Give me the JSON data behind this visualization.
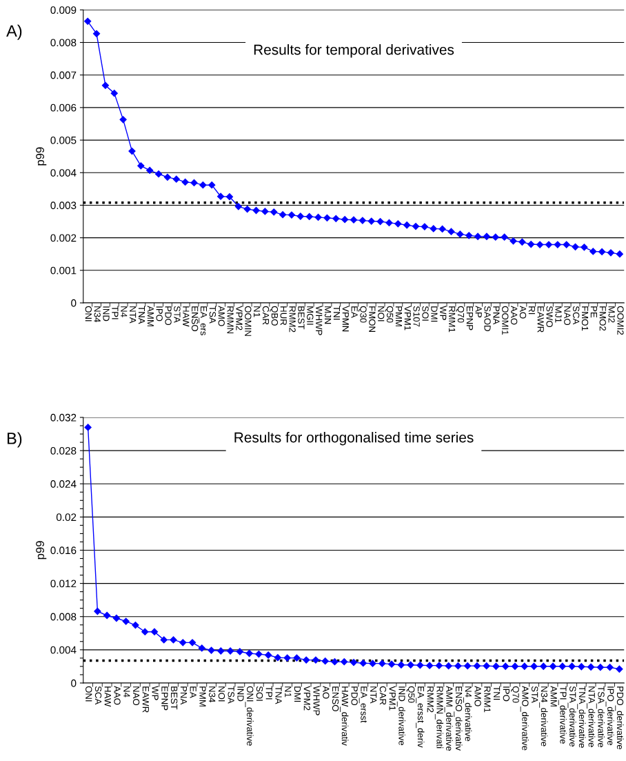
{
  "chart_data": [
    {
      "type": "line",
      "title": "Results for temporal derivatives",
      "ylabel": "p99",
      "annotations": [
        "A)"
      ],
      "categories": [
        "ONI",
        "N34",
        "IND",
        "TPI",
        "N4",
        "NTA",
        "TNA",
        "AMM",
        "IPO",
        "PDO",
        "STA",
        "HAW",
        "ENSO",
        "EA_ers",
        "TSA",
        "AMO",
        "RMMN",
        "VPM2",
        "OOMIN",
        "N1",
        "CAR",
        "QBO",
        "HUR",
        "RMM2",
        "BEST",
        "MGII",
        "WHWP",
        "MJN",
        "TNI",
        "VPMN",
        "EA",
        "Q30",
        "FMON",
        "NOI",
        "Q50",
        "PMM",
        "VPM1",
        "S107",
        "SOI",
        "DMI",
        "WP",
        "RMM1",
        "Q70",
        "EPNP",
        "AP",
        "SAOD",
        "PNA",
        "OOMI1",
        "AAO",
        "AO",
        "RI",
        "EAWR",
        "SWO",
        "MJ1",
        "NAO",
        "SCA",
        "FMO1",
        "PE",
        "FMO2",
        "MJ2",
        "OOMI2"
      ],
      "series": [
        {
          "color": "#0000ff",
          "values": [
            0.00865,
            0.00827,
            0.00668,
            0.00644,
            0.00563,
            0.00466,
            0.00421,
            0.00407,
            0.00396,
            0.00386,
            0.0038,
            0.00371,
            0.00369,
            0.00362,
            0.00362,
            0.00327,
            0.00326,
            0.00296,
            0.00288,
            0.00284,
            0.00281,
            0.00279,
            0.00271,
            0.0027,
            0.00266,
            0.00265,
            0.00263,
            0.00261,
            0.00259,
            0.00256,
            0.00255,
            0.00253,
            0.00251,
            0.0025,
            0.00246,
            0.00243,
            0.00239,
            0.00235,
            0.00234,
            0.00228,
            0.00227,
            0.00219,
            0.00211,
            0.00207,
            0.00204,
            0.00204,
            0.00202,
            0.00202,
            0.0019,
            0.00187,
            0.0018,
            0.00179,
            0.00179,
            0.00179,
            0.00179,
            0.00172,
            0.00171,
            0.00158,
            0.00157,
            0.00154,
            0.0015
          ]
        }
      ],
      "ylim": [
        0,
        0.009
      ],
      "yticks": [
        0,
        0.001,
        0.002,
        0.003,
        0.004,
        0.005,
        0.006,
        0.007,
        0.008,
        0.009
      ],
      "ref_lines": [
        {
          "axis": "y",
          "value": 0.00308,
          "color": "#000000",
          "line_style": "dotted"
        }
      ],
      "grid": "y",
      "marker": "diamond",
      "line_style": "solid"
    },
    {
      "type": "line",
      "title": "Results for orthogonalised time series",
      "ylabel": "p99",
      "annotations": [
        "B)"
      ],
      "categories": [
        "ONI",
        "SCA",
        "HAW",
        "AAO",
        "N4",
        "NAO",
        "EAWR",
        "WP",
        "EPNP",
        "BEST",
        "PNA",
        "EA",
        "PMM",
        "N34",
        "NOI",
        "TSA",
        "IND",
        "ONI_derivative",
        "SOI",
        "TPI",
        "TNA",
        "N1",
        "DMI",
        "VPM2",
        "WHWP",
        "AO",
        "ENSO",
        "HAW_derivativ",
        "PDO",
        "EA_ersst",
        "NTA",
        "CAR",
        "VPM1",
        "IND_derivative",
        "Q50",
        "EA_ersst_deriv",
        "RMM2",
        "RMMN_derivati",
        "AMM_derivative",
        "ENSO_derivativ",
        "N4_derivative",
        "AMO",
        "RMM1",
        "TNI",
        "IPO",
        "Q70",
        "AMO_derivative",
        "STA",
        "N34_derivative",
        "AMM",
        "TPI_derivative",
        "STA_derivative",
        "TNA_derivative",
        "NTA_derivative",
        "TSA_derivative",
        "IPO_derivative",
        "PDO_derivative"
      ],
      "series": [
        {
          "color": "#0000ff",
          "values": [
            0.0308,
            0.00864,
            0.00814,
            0.00781,
            0.00743,
            0.00697,
            0.00617,
            0.00617,
            0.0052,
            0.0052,
            0.00487,
            0.00487,
            0.0042,
            0.00394,
            0.00386,
            0.00386,
            0.00378,
            0.00357,
            0.00348,
            0.00336,
            0.00306,
            0.00302,
            0.00302,
            0.00277,
            0.00277,
            0.00264,
            0.00256,
            0.00256,
            0.00248,
            0.00239,
            0.00235,
            0.00235,
            0.00227,
            0.00218,
            0.00218,
            0.00214,
            0.0021,
            0.0021,
            0.00206,
            0.00206,
            0.00206,
            0.00206,
            0.00206,
            0.00201,
            0.00201,
            0.00201,
            0.00201,
            0.00201,
            0.00201,
            0.00201,
            0.00201,
            0.00201,
            0.00197,
            0.00193,
            0.00189,
            0.00189,
            0.00168
          ]
        }
      ],
      "ylim": [
        0,
        0.032
      ],
      "yticks": [
        0,
        {
          "value": 0.001,
          "label": null
        },
        {
          "value": 0.002,
          "label": null
        },
        {
          "value": 0.003,
          "label": null
        },
        0.004,
        {
          "value": 0.005,
          "label": null
        },
        {
          "value": 0.006,
          "label": null
        },
        {
          "value": 0.007,
          "label": null
        },
        0.008,
        {
          "value": 0.009,
          "label": null
        },
        {
          "value": 0.01,
          "label": null
        },
        {
          "value": 0.011,
          "label": null
        },
        0.012,
        {
          "value": 0.013,
          "label": null
        },
        {
          "value": 0.014,
          "label": null
        },
        {
          "value": 0.015,
          "label": null
        },
        0.016,
        {
          "value": 0.017,
          "label": null
        },
        {
          "value": 0.018,
          "label": null
        },
        {
          "value": 0.019,
          "label": null
        },
        0.02,
        {
          "value": 0.021,
          "label": null
        },
        {
          "value": 0.022,
          "label": null
        },
        {
          "value": 0.023,
          "label": null
        },
        0.024,
        {
          "value": 0.025,
          "label": null
        },
        {
          "value": 0.026,
          "label": null
        },
        {
          "value": 0.027,
          "label": null
        },
        0.028,
        {
          "value": 0.029,
          "label": null
        },
        {
          "value": 0.03,
          "label": null
        },
        {
          "value": 0.031,
          "label": null
        },
        0.032
      ],
      "ref_lines": [
        {
          "axis": "y",
          "value": 0.00269,
          "color": "#000000",
          "line_style": "dotted"
        }
      ],
      "grid": "y",
      "marker": "diamond",
      "line_style": "solid"
    }
  ]
}
